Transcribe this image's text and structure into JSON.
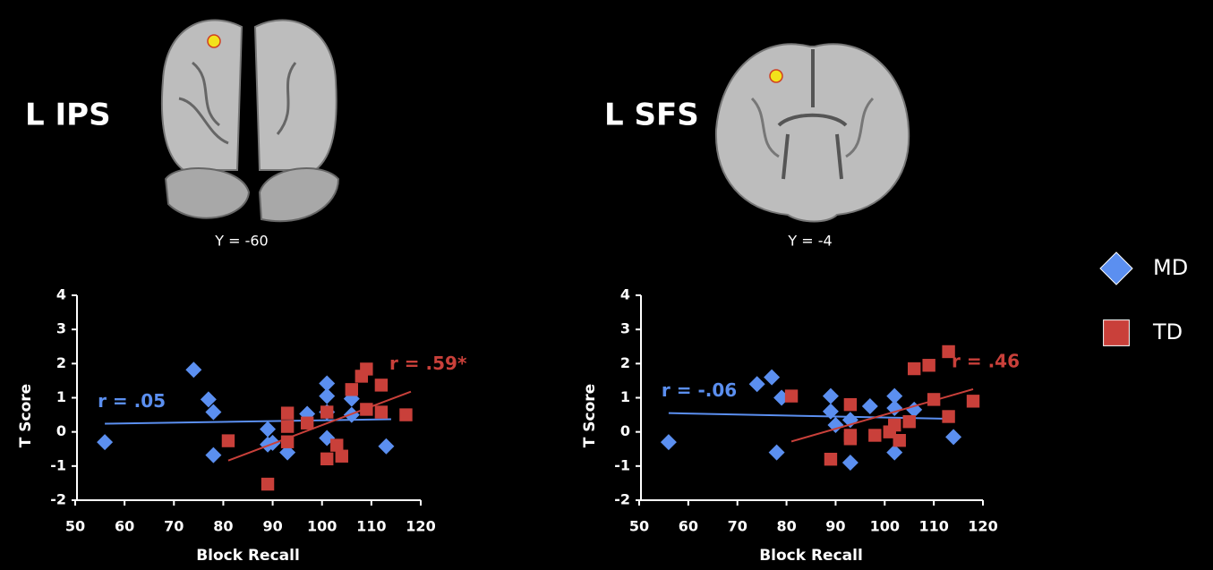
{
  "chart_data": [
    {
      "type": "scatter",
      "region_label": "L IPS",
      "slice_label": "Y = -60",
      "x_label": "Block Recall",
      "y_label": "T Score",
      "xlim": [
        50,
        120
      ],
      "xticks": [
        50,
        60,
        70,
        80,
        90,
        100,
        110,
        120
      ],
      "ylim": [
        -2,
        4
      ],
      "yticks": [
        -2,
        -1,
        0,
        1,
        2,
        3,
        4
      ],
      "series": [
        {
          "color": "#5b8ff0",
          "marker": "diamond",
          "x": [
            56,
            74,
            77,
            78,
            78,
            89,
            89,
            90,
            93,
            97,
            101,
            101,
            101,
            101,
            106,
            106,
            113
          ],
          "values": [
            -0.3,
            1.82,
            0.95,
            0.58,
            -0.68,
            0.08,
            -0.37,
            -0.32,
            -0.6,
            0.53,
            1.42,
            1.05,
            0.58,
            -0.18,
            0.97,
            0.5,
            -0.42
          ],
          "trend": {
            "x": [
              56,
              114
            ],
            "y": [
              0.24,
              0.37
            ]
          },
          "annotation": "r = .05"
        },
        {
          "color": "#c9403a",
          "marker": "square",
          "x": [
            81,
            89,
            93,
            93,
            93,
            97,
            101,
            101,
            103,
            104,
            106,
            108,
            109,
            109,
            112,
            112,
            117
          ],
          "values": [
            -0.26,
            -1.53,
            0.55,
            0.16,
            -0.29,
            0.26,
            -0.79,
            0.58,
            -0.39,
            -0.71,
            1.24,
            1.63,
            1.84,
            0.66,
            1.37,
            0.58,
            0.5
          ],
          "trend": {
            "x": [
              81,
              118
            ],
            "y": [
              -0.84,
              1.18
            ]
          },
          "annotation": "r = .59*"
        }
      ]
    },
    {
      "type": "scatter",
      "region_label": "L SFS",
      "slice_label": "Y = -4",
      "x_label": "Block Recall",
      "y_label": "T Score",
      "xlim": [
        50,
        120
      ],
      "xticks": [
        50,
        60,
        70,
        80,
        90,
        100,
        110,
        120
      ],
      "ylim": [
        -2,
        4
      ],
      "yticks": [
        -2,
        -1,
        0,
        1,
        2,
        3,
        4
      ],
      "series": [
        {
          "color": "#5b8ff0",
          "marker": "diamond",
          "x": [
            56,
            74,
            77,
            78,
            79,
            89,
            89,
            90,
            93,
            93,
            97,
            102,
            102,
            102,
            106,
            114
          ],
          "values": [
            -0.3,
            1.4,
            1.6,
            -0.6,
            1.0,
            1.05,
            0.6,
            0.2,
            0.35,
            -0.9,
            0.75,
            1.05,
            0.7,
            -0.6,
            0.65,
            -0.15
          ],
          "trend": {
            "x": [
              56,
              114
            ],
            "y": [
              0.55,
              0.38
            ]
          },
          "annotation": "r = -.06"
        },
        {
          "color": "#c9403a",
          "marker": "square",
          "x": [
            81,
            89,
            93,
            93,
            93,
            98,
            101,
            102,
            103,
            105,
            106,
            109,
            110,
            113,
            113,
            118
          ],
          "values": [
            1.05,
            -0.8,
            0.8,
            -0.1,
            -0.2,
            -0.1,
            0.0,
            0.2,
            -0.25,
            0.3,
            1.85,
            1.95,
            0.95,
            2.35,
            0.45,
            0.9
          ],
          "trend": {
            "x": [
              81,
              118
            ],
            "y": [
              -0.28,
              1.25
            ]
          },
          "annotation": "r = .46"
        }
      ]
    }
  ],
  "legend": [
    {
      "name": "MD",
      "color": "#5b8ff0",
      "marker": "diamond"
    },
    {
      "name": "TD",
      "color": "#c9403a",
      "marker": "square"
    }
  ]
}
